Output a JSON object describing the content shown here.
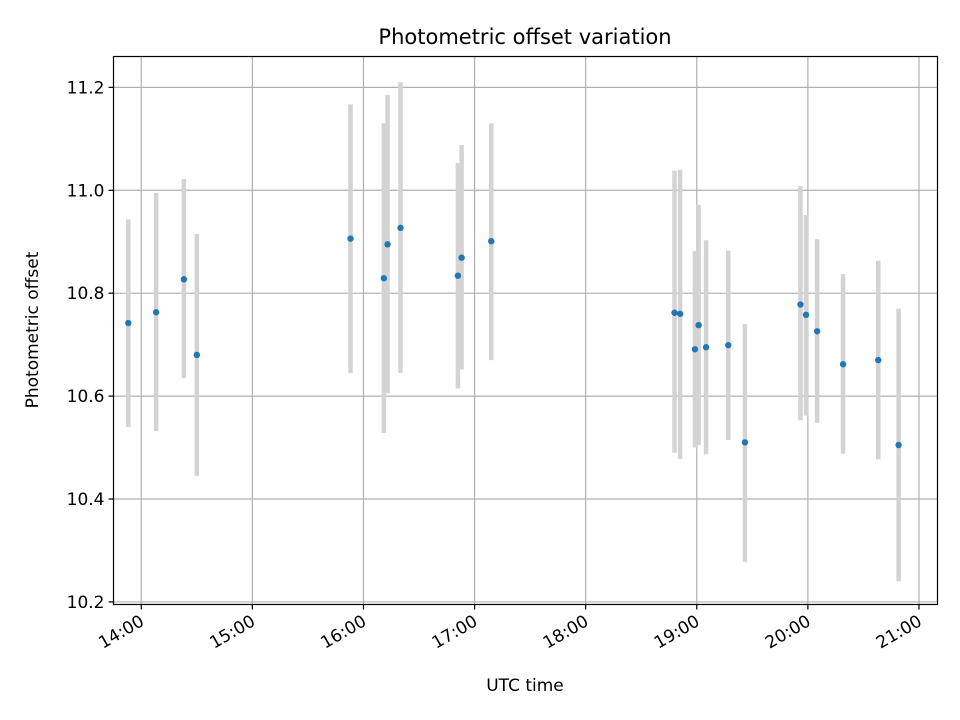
{
  "chart_data": {
    "type": "scatter",
    "title": "Photometric offset variation",
    "xlabel": "UTC time",
    "ylabel": "Photometric offset",
    "x_ticks": [
      "14:00",
      "15:00",
      "16:00",
      "17:00",
      "18:00",
      "19:00",
      "20:00",
      "21:00"
    ],
    "y_ticks": [
      "10.2",
      "10.4",
      "10.6",
      "10.8",
      "11.0",
      "11.2"
    ],
    "xlim": [
      "13:45",
      "21:10"
    ],
    "ylim": [
      10.195,
      11.26
    ],
    "grid": true,
    "colors": {
      "points": "#1f77b4",
      "errorbars": "#d3d3d3",
      "grid": "#b0b0b0"
    },
    "points": [
      {
        "x": "13:53",
        "y": 10.742,
        "lo": 10.54,
        "hi": 10.943
      },
      {
        "x": "14:08",
        "y": 10.763,
        "lo": 10.532,
        "hi": 10.995
      },
      {
        "x": "14:23",
        "y": 10.827,
        "lo": 10.635,
        "hi": 11.022
      },
      {
        "x": "14:30",
        "y": 10.68,
        "lo": 10.445,
        "hi": 10.915
      },
      {
        "x": "15:53",
        "y": 10.906,
        "lo": 10.645,
        "hi": 11.167
      },
      {
        "x": "16:11",
        "y": 10.829,
        "lo": 10.528,
        "hi": 11.13
      },
      {
        "x": "16:13",
        "y": 10.895,
        "lo": 10.605,
        "hi": 11.185
      },
      {
        "x": "16:20",
        "y": 10.927,
        "lo": 10.645,
        "hi": 11.21
      },
      {
        "x": "16:51",
        "y": 10.834,
        "lo": 10.615,
        "hi": 11.053
      },
      {
        "x": "16:53",
        "y": 10.869,
        "lo": 10.652,
        "hi": 11.088
      },
      {
        "x": "17:09",
        "y": 10.901,
        "lo": 10.67,
        "hi": 11.13
      },
      {
        "x": "18:48",
        "y": 10.762,
        "lo": 10.49,
        "hi": 11.038
      },
      {
        "x": "18:51",
        "y": 10.76,
        "lo": 10.478,
        "hi": 11.04
      },
      {
        "x": "18:59",
        "y": 10.691,
        "lo": 10.5,
        "hi": 10.882
      },
      {
        "x": "19:01",
        "y": 10.738,
        "lo": 10.505,
        "hi": 10.972
      },
      {
        "x": "19:05",
        "y": 10.695,
        "lo": 10.487,
        "hi": 10.903
      },
      {
        "x": "19:17",
        "y": 10.699,
        "lo": 10.515,
        "hi": 10.883
      },
      {
        "x": "19:26",
        "y": 10.51,
        "lo": 10.278,
        "hi": 10.74
      },
      {
        "x": "19:56",
        "y": 10.778,
        "lo": 10.553,
        "hi": 11.008
      },
      {
        "x": "19:59",
        "y": 10.758,
        "lo": 10.562,
        "hi": 10.952
      },
      {
        "x": "20:05",
        "y": 10.726,
        "lo": 10.548,
        "hi": 10.905
      },
      {
        "x": "20:19",
        "y": 10.662,
        "lo": 10.488,
        "hi": 10.837
      },
      {
        "x": "20:38",
        "y": 10.67,
        "lo": 10.477,
        "hi": 10.863
      },
      {
        "x": "20:49",
        "y": 10.505,
        "lo": 10.24,
        "hi": 10.77
      }
    ]
  }
}
